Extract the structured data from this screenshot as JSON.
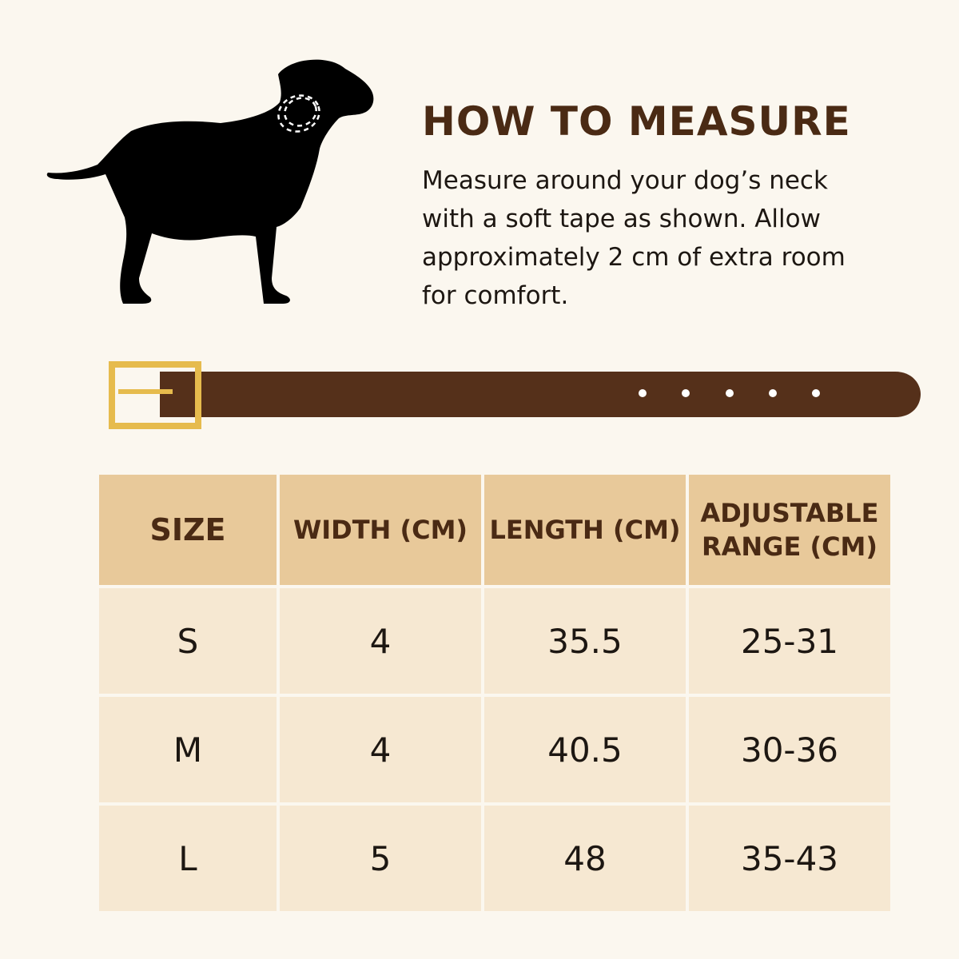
{
  "instructions": {
    "heading": "HOW TO MEASURE",
    "body": "Measure around your dog’s neck with a soft tape as shown. Allow approximately 2 cm of extra room for comfort."
  },
  "colors": {
    "background": "#fbf7ef",
    "heading": "#4a2a14",
    "collar_leather": "#55301a",
    "buckle": "#e6bb4d",
    "table_header": "#e8c99a",
    "table_cell": "#f6e8d2",
    "dog_silhouette": "#000000"
  },
  "icons": {
    "dog": "dog-silhouette-icon",
    "collar": "collar-icon",
    "buckle": "buckle-icon"
  },
  "table": {
    "headers": {
      "size": "SIZE",
      "width": "WIDTH (CM)",
      "length": "LENGTH (CM)",
      "range_line1": "ADJUSTABLE",
      "range_line2": "RANGE (CM)"
    },
    "rows": [
      {
        "size": "S",
        "width": "4",
        "length": "35.5",
        "range": "25-31"
      },
      {
        "size": "M",
        "width": "4",
        "length": "40.5",
        "range": "30-36"
      },
      {
        "size": "L",
        "width": "5",
        "length": "48",
        "range": "35-43"
      }
    ]
  }
}
